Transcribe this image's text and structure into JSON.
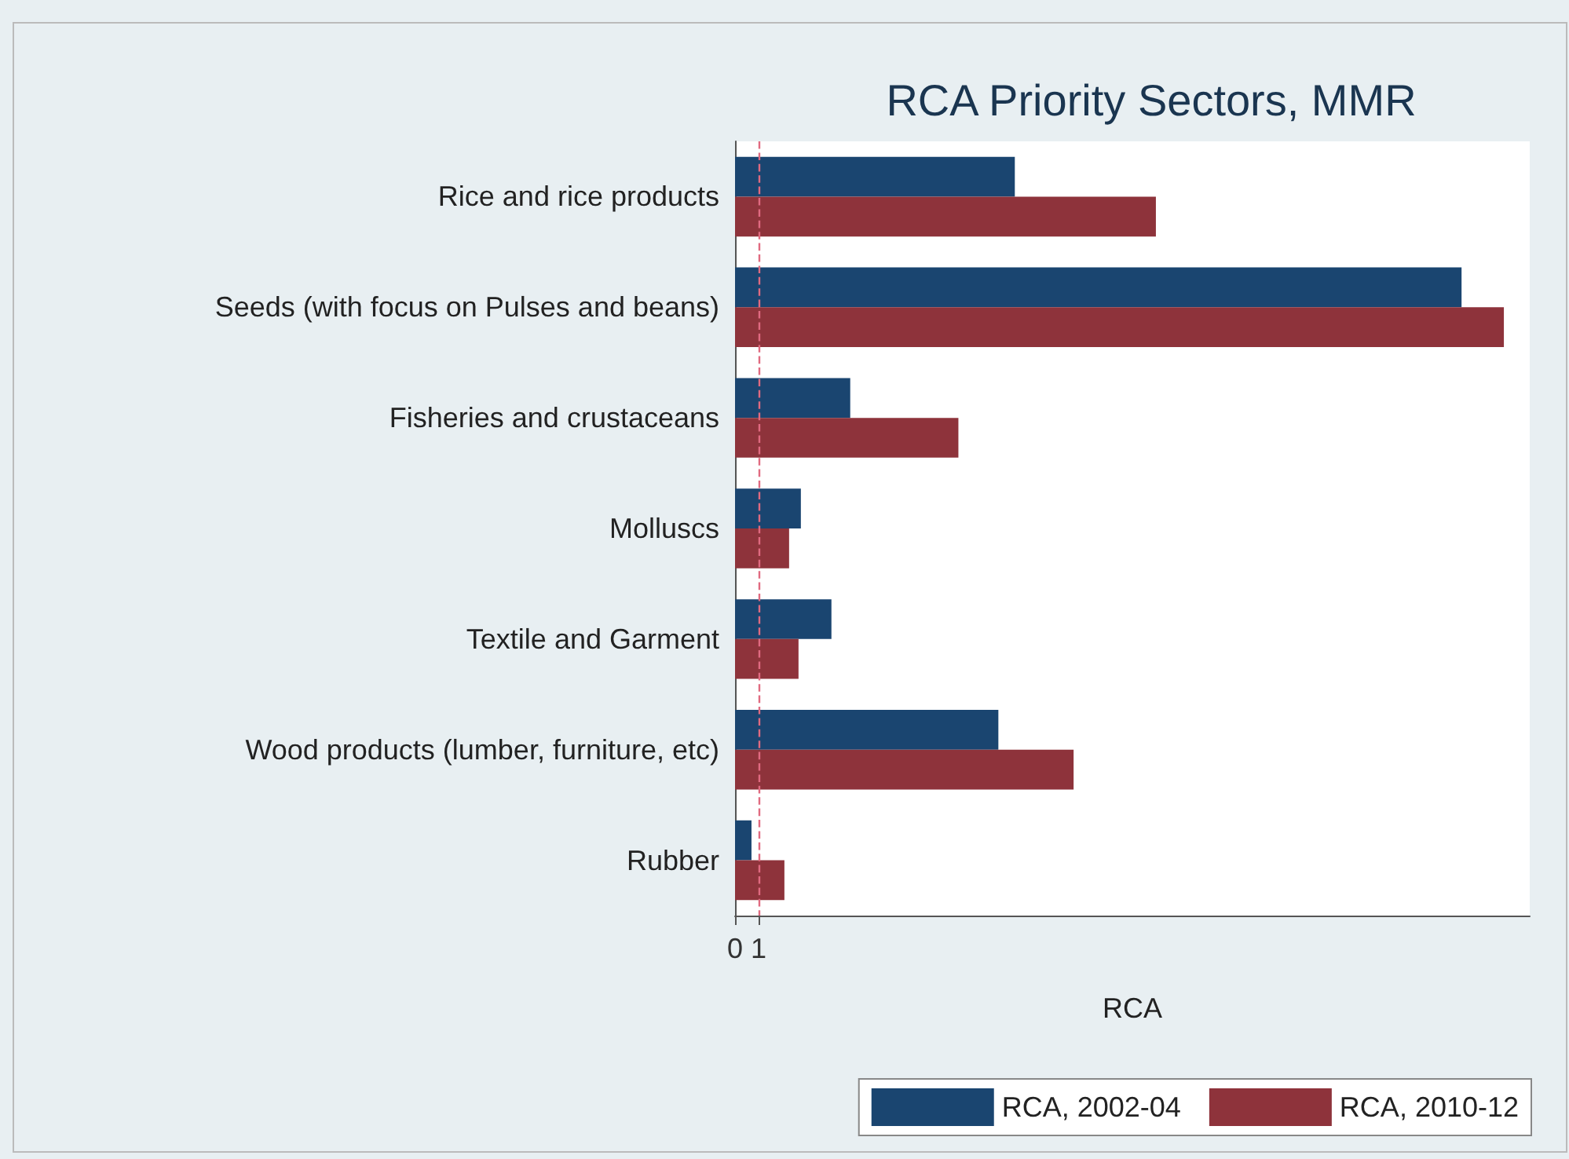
{
  "chart_data": {
    "type": "bar",
    "orientation": "horizontal",
    "title": "RCA Priority Sectors, MMR",
    "xlabel": "RCA",
    "categories": [
      "Rice and rice products",
      "Seeds (with focus on Pulses and beans)",
      "Fisheries and crustaceans",
      "Molluscs",
      "Textile and Garment",
      "Wood products (lumber, furniture, etc)",
      "Rubber"
    ],
    "series": [
      {
        "name": "RCA, 2002-04",
        "color": "#1a4570",
        "values": [
          11.9,
          30.9,
          4.9,
          2.8,
          4.1,
          11.2,
          0.7
        ]
      },
      {
        "name": "RCA, 2010-12",
        "color": "#8e333b",
        "values": [
          17.9,
          32.7,
          9.5,
          2.3,
          2.7,
          14.4,
          2.1
        ]
      }
    ],
    "xlim": [
      0,
      33.8
    ],
    "xticks": [
      0,
      1
    ],
    "ref_lines": [
      {
        "axis": "x",
        "value": 1,
        "color": "#e06a80",
        "line_style": "dashed"
      }
    ],
    "grid": false,
    "legend": "bottom right"
  }
}
